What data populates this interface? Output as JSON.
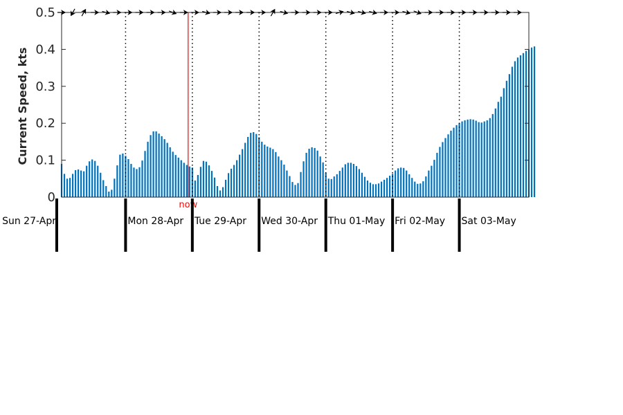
{
  "chart_data": {
    "type": "bar",
    "ylabel": "Current Speed, kts",
    "ylim": [
      0,
      0.5
    ],
    "yticks": [
      "0",
      "0.1",
      "0.2",
      "0.3",
      "0.4",
      "0.5"
    ],
    "days": [
      "Sun 27-Apr",
      "Mon 28-Apr",
      "Tue 29-Apr",
      "Wed 30-Apr",
      "Thu 01-May",
      "Fri 02-May",
      "Sat 03-May"
    ],
    "day_start_hours": [
      0,
      24,
      48,
      72,
      96,
      120,
      144
    ],
    "x_range_hours": [
      1,
      169
    ],
    "bar_step_hours": 1,
    "bar_start_hour": 1,
    "now_hour": 46.5,
    "now_label": "now",
    "colors": {
      "bar": "#0072bd",
      "now": "#ff0000",
      "axis": "#262626"
    },
    "values": [
      0.09,
      0.063,
      0.05,
      0.052,
      0.063,
      0.073,
      0.075,
      0.072,
      0.07,
      0.085,
      0.097,
      0.102,
      0.098,
      0.085,
      0.066,
      0.046,
      0.03,
      0.015,
      0.02,
      0.05,
      0.086,
      0.115,
      0.118,
      0.112,
      0.103,
      0.09,
      0.08,
      0.076,
      0.081,
      0.099,
      0.125,
      0.15,
      0.168,
      0.178,
      0.178,
      0.172,
      0.165,
      0.157,
      0.147,
      0.135,
      0.123,
      0.114,
      0.107,
      0.1,
      0.093,
      0.087,
      0.083,
      0.08,
      0.045,
      0.06,
      0.082,
      0.098,
      0.096,
      0.086,
      0.071,
      0.053,
      0.03,
      0.018,
      0.027,
      0.047,
      0.065,
      0.077,
      0.087,
      0.1,
      0.115,
      0.13,
      0.147,
      0.163,
      0.174,
      0.176,
      0.171,
      0.162,
      0.15,
      0.142,
      0.137,
      0.134,
      0.13,
      0.122,
      0.11,
      0.1,
      0.088,
      0.072,
      0.057,
      0.041,
      0.033,
      0.038,
      0.068,
      0.097,
      0.12,
      0.131,
      0.135,
      0.133,
      0.126,
      0.11,
      0.094,
      0.066,
      0.05,
      0.049,
      0.056,
      0.062,
      0.071,
      0.08,
      0.089,
      0.093,
      0.093,
      0.09,
      0.084,
      0.076,
      0.066,
      0.055,
      0.045,
      0.039,
      0.035,
      0.035,
      0.037,
      0.042,
      0.047,
      0.052,
      0.058,
      0.063,
      0.072,
      0.078,
      0.08,
      0.079,
      0.072,
      0.062,
      0.052,
      0.042,
      0.036,
      0.037,
      0.043,
      0.056,
      0.072,
      0.085,
      0.101,
      0.12,
      0.136,
      0.149,
      0.16,
      0.17,
      0.18,
      0.188,
      0.195,
      0.2,
      0.205,
      0.208,
      0.21,
      0.211,
      0.21,
      0.207,
      0.203,
      0.202,
      0.205,
      0.208,
      0.214,
      0.225,
      0.24,
      0.258,
      0.272,
      0.295,
      0.315,
      0.333,
      0.353,
      0.368,
      0.378,
      0.384,
      0.39,
      0.396,
      0.4,
      0.405,
      0.408
    ],
    "direction_arrows": {
      "hour_step": 4,
      "first_hour": 1,
      "angles_deg": [
        0,
        120,
        -60,
        0,
        15,
        0,
        0,
        0,
        0,
        0,
        20,
        0,
        0,
        15,
        0,
        0,
        0,
        0,
        0,
        -60,
        15,
        0,
        0,
        0,
        0,
        -15,
        15,
        15,
        15,
        0,
        0,
        15,
        20,
        0,
        0,
        0,
        0,
        0,
        0,
        0,
        0,
        0
      ]
    }
  }
}
